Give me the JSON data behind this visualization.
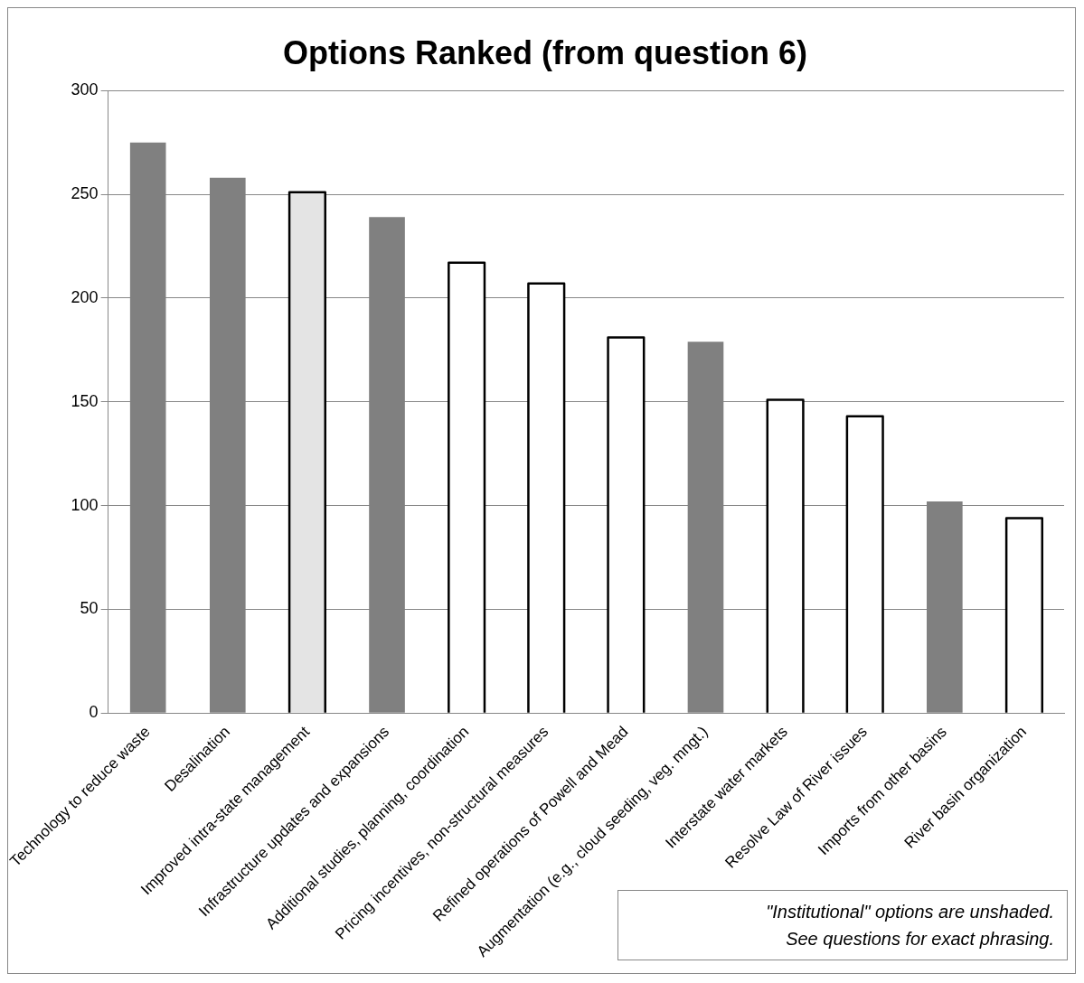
{
  "chart_data": {
    "type": "bar",
    "title": "Options Ranked (from question 6)",
    "categories": [
      "Technology to reduce waste",
      "Desalination",
      "Improved intra-state management",
      "Infrastructure updates and expansions",
      "Additional studies, planning, coordination",
      "Pricing incentives, non-structural measures",
      "Refined operations of Powell and Mead",
      "Augmentation (e.g., cloud seeding, veg. mngt.)",
      "Interstate water markets",
      "Resolve Law of River issues",
      "Imports from other basins",
      "River basin organization"
    ],
    "values": [
      275,
      258,
      251,
      239,
      217,
      207,
      181,
      179,
      151,
      143,
      102,
      94
    ],
    "colors": [
      "#808080",
      "#808080",
      "#e4e4e4",
      "#808080",
      "#ffffff",
      "#ffffff",
      "#ffffff",
      "#808080",
      "#ffffff",
      "#ffffff",
      "#808080",
      "#ffffff"
    ],
    "ylim": [
      0,
      300
    ],
    "yticks": [
      0,
      50,
      100,
      150,
      200,
      250,
      300
    ],
    "grid": "y",
    "legend": false,
    "annotations": [
      "\"Institutional\" options are unshaded.\nSee questions for exact  phrasing."
    ]
  }
}
